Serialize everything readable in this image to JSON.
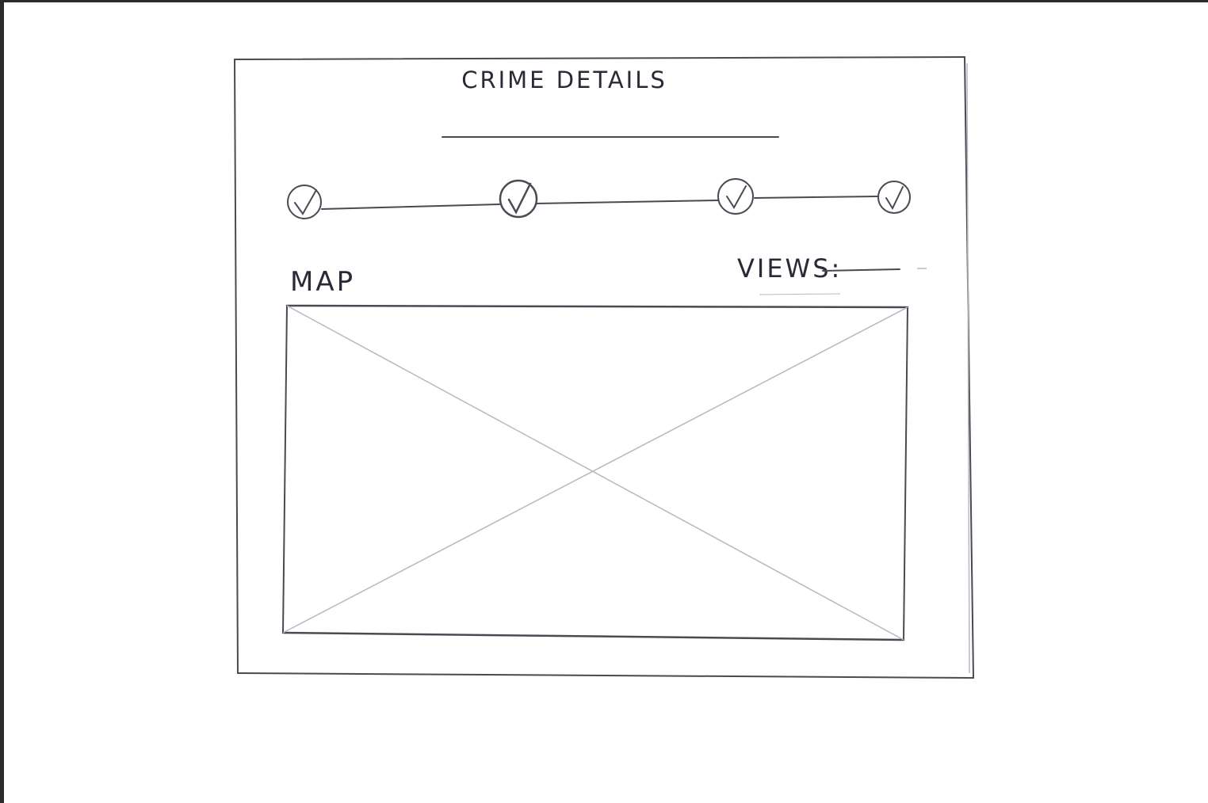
{
  "screen": {
    "title": "CRIME DETAILS"
  },
  "progress": {
    "steps": [
      {
        "icon": "check-icon",
        "completed": true
      },
      {
        "icon": "check-icon",
        "completed": true
      },
      {
        "icon": "check-icon",
        "completed": true
      },
      {
        "icon": "check-icon",
        "completed": true
      }
    ]
  },
  "map": {
    "label": "MAP",
    "placeholder_icon": "image-placeholder-icon"
  },
  "views": {
    "label": "VIEWS:"
  }
}
